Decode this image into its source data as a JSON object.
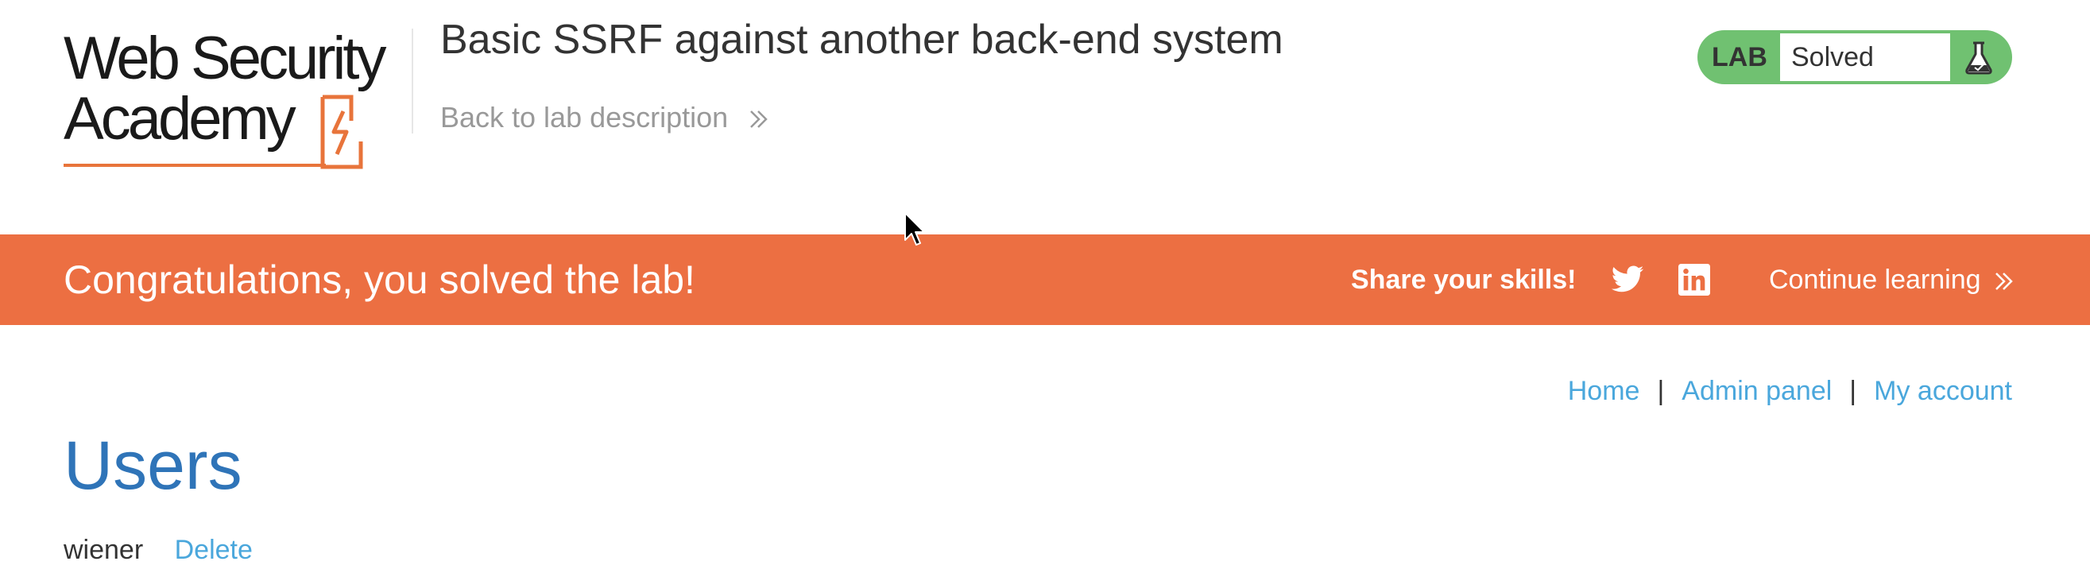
{
  "header": {
    "logo": {
      "line1": "Web Security",
      "line2": "Academy",
      "accent_color": "#e8743b"
    },
    "lab_title": "Basic SSRF against another back-end system",
    "back_link": "Back to lab description",
    "lab_status": {
      "label": "LAB",
      "state": "Solved",
      "color": "#70c171",
      "icon": "flask-icon"
    }
  },
  "banner": {
    "message": "Congratulations, you solved the lab!",
    "share_label": "Share your skills!",
    "share_icons": [
      "twitter-icon",
      "linkedin-icon"
    ],
    "continue_link": "Continue learning",
    "color": "#ec6f42"
  },
  "nav": {
    "items": [
      {
        "label": "Home"
      },
      {
        "label": "Admin panel"
      },
      {
        "label": "My account"
      }
    ],
    "separator": "|"
  },
  "main": {
    "title": "Users",
    "users": [
      {
        "name": "wiener",
        "action": "Delete"
      }
    ]
  }
}
